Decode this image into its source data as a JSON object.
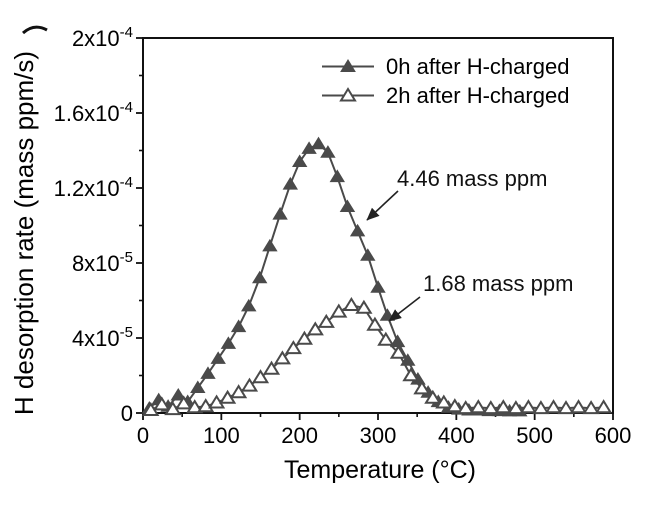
{
  "chart_data": {
    "type": "line",
    "title": "",
    "xlabel": "Temperature (°C)",
    "ylabel": "H desorption rate (mass ppm/s)",
    "xlim": [
      0,
      600
    ],
    "ylim": [
      0,
      0.0002
    ],
    "grid": false,
    "legend_position": "top-right-inside",
    "x_major_ticks": [
      0,
      100,
      200,
      300,
      400,
      500,
      600
    ],
    "x_minor_step": 50,
    "y_minor_step": 2e-05,
    "y_major_ticks": [
      {
        "value": 0,
        "mantissa": "0",
        "exponent": ""
      },
      {
        "value": 4e-05,
        "mantissa": "4x10",
        "exponent": "-5"
      },
      {
        "value": 8e-05,
        "mantissa": "8x10",
        "exponent": "-5"
      },
      {
        "value": 0.00012,
        "mantissa": "1.2x10",
        "exponent": "-4"
      },
      {
        "value": 0.00016,
        "mantissa": "1.6x10",
        "exponent": "-4"
      },
      {
        "value": 0.0002,
        "mantissa": "2x10",
        "exponent": "-4"
      }
    ],
    "series": [
      {
        "name": "0h after H-charged",
        "marker": "triangle-filled",
        "color": "#4a4a4a",
        "total_desorbed_label": "4.46 mass ppm",
        "x": [
          8,
          20,
          32,
          45,
          57,
          70,
          83,
          96,
          109,
          122,
          135,
          149,
          162,
          175,
          188,
          200,
          212,
          224,
          236,
          248,
          261,
          274,
          287,
          300,
          312,
          325,
          338,
          351,
          364,
          377,
          390,
          403,
          416,
          429,
          442,
          455,
          468,
          481
        ],
        "y": [
          2.5e-06,
          7e-06,
          3.5e-06,
          9.5e-06,
          6e-06,
          1.35e-05,
          2.1e-05,
          2.9e-05,
          3.7e-05,
          4.6e-05,
          5.7e-05,
          7.2e-05,
          8.9e-05,
          0.000106,
          0.000122,
          0.000134,
          0.000141,
          0.0001435,
          0.000139,
          0.000126,
          0.00011,
          9.7e-05,
          8.4e-05,
          6.7e-05,
          5.2e-05,
          3.8e-05,
          2.8e-05,
          1.8e-05,
          1.1e-05,
          6e-06,
          3e-06,
          2e-06,
          1.5e-06,
          1.5e-06,
          1.2e-06,
          1.2e-06,
          1e-06,
          1e-06
        ]
      },
      {
        "name": "2h after H-charged",
        "marker": "triangle-open",
        "color": "#4a4a4a",
        "total_desorbed_label": "1.68 mass ppm",
        "x": [
          10,
          24,
          38,
          52,
          66,
          80,
          94,
          108,
          122,
          136,
          150,
          164,
          178,
          192,
          206,
          220,
          234,
          250,
          266,
          282,
          296,
          310,
          326,
          342,
          356,
          370,
          384,
          398,
          412,
          428,
          444,
          460,
          476,
          492,
          508,
          524,
          540,
          556,
          572,
          588
        ],
        "y": [
          1.5e-06,
          4.5e-06,
          2e-06,
          5e-06,
          3e-06,
          3.5e-06,
          5.5e-06,
          8e-06,
          1.1e-05,
          1.45e-05,
          1.9e-05,
          2.35e-05,
          2.9e-05,
          3.45e-05,
          3.95e-05,
          4.45e-05,
          4.85e-05,
          5.4e-05,
          5.75e-05,
          5.6e-05,
          4.7e-05,
          3.9e-05,
          3.2e-05,
          2e-05,
          1.3e-05,
          8e-06,
          5.5e-06,
          3.5e-06,
          2.5e-06,
          3e-06,
          2.5e-06,
          3e-06,
          2.5e-06,
          3e-06,
          2.5e-06,
          3e-06,
          2.5e-06,
          3e-06,
          2.5e-06,
          3e-06
        ]
      }
    ],
    "annotations": [
      {
        "text": "4.46 mass ppm",
        "series": "0h after H-charged"
      },
      {
        "text": "1.68 mass ppm",
        "series": "2h after H-charged"
      }
    ]
  }
}
